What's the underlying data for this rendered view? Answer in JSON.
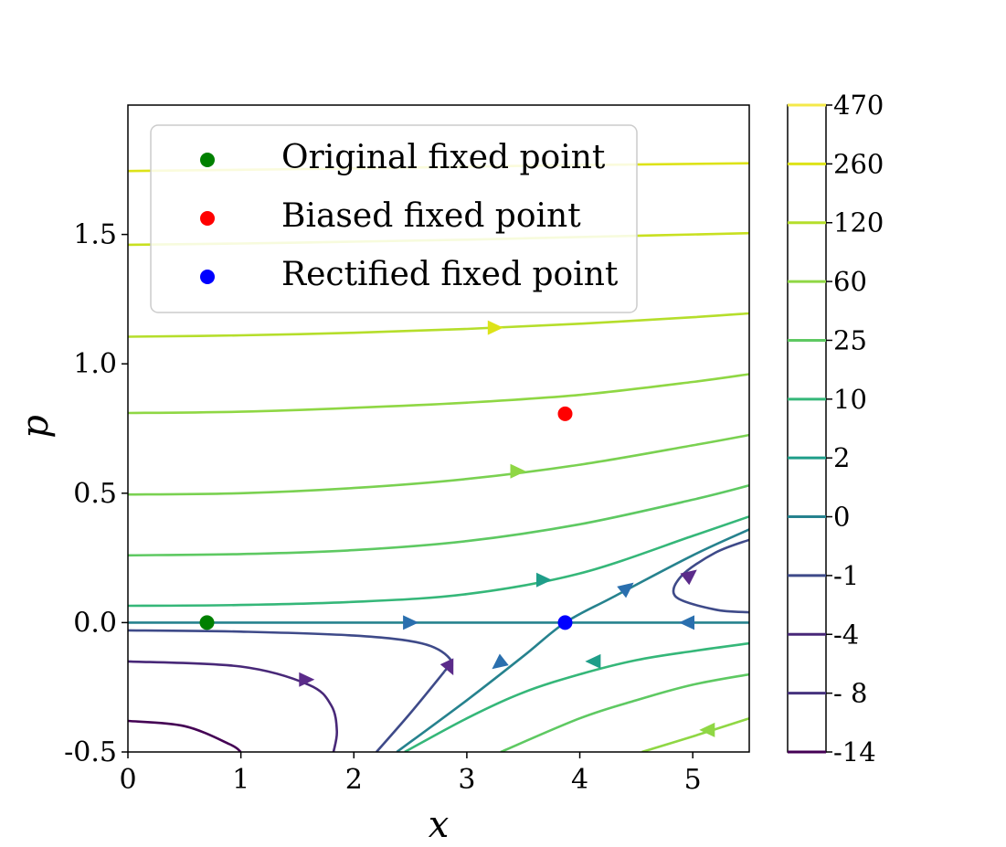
{
  "chart_data": {
    "type": "line",
    "subtype": "contour / phase portrait",
    "title": "",
    "xlabel": "x",
    "ylabel": "p",
    "xlim": [
      0,
      5.5
    ],
    "ylim": [
      -0.5,
      2.0
    ],
    "xticks": [
      "0",
      "1",
      "2",
      "3",
      "4",
      "5"
    ],
    "yticks": [
      {
        "value": -0.5,
        "label": "-0.5"
      },
      {
        "value": 0.0,
        "label": "0.0"
      },
      {
        "value": 0.5,
        "label": "0.5"
      },
      {
        "value": 1.0,
        "label": "1.0"
      },
      {
        "value": 1.5,
        "label": "1.5"
      }
    ],
    "grid": false,
    "legend_position": "top-left",
    "legend": [
      {
        "label": "Original fixed point",
        "color": "#008000"
      },
      {
        "label": "Biased fixed point",
        "color": "#ff0000"
      },
      {
        "label": "Rectified fixed point",
        "color": "#0000ff"
      }
    ],
    "fixed_points": [
      {
        "name": "Original fixed point",
        "x": 0.7,
        "p": 0.0,
        "color": "#008000"
      },
      {
        "name": "Biased fixed point",
        "x": 3.87,
        "p": 0.807,
        "color": "#ff0000"
      },
      {
        "name": "Rectified fixed point",
        "x": 3.87,
        "p": 0.0,
        "color": "#0000ff"
      }
    ],
    "colorbar": {
      "labels": [
        "470",
        "260",
        "120",
        "60",
        "25",
        "10",
        "2",
        "0",
        "-1",
        "-4",
        "- 8",
        "-14"
      ],
      "colors": [
        "#f4e94a",
        "#dde318",
        "#b5de2b",
        "#8fd744",
        "#5ec962",
        "#35b779",
        "#1f9e89",
        "#26828e",
        "#3e4a89",
        "#482878",
        "#46327e",
        "#440154"
      ]
    },
    "series": [
      {
        "level": "260",
        "color": "#dde318",
        "x": [
          0,
          1,
          2,
          3,
          4,
          5.5
        ],
        "y": [
          1.745,
          1.75,
          1.755,
          1.762,
          1.768,
          1.775
        ]
      },
      {
        "level": "120",
        "color": "#c8e020",
        "x": [
          0,
          1,
          2,
          3,
          4,
          5.5
        ],
        "y": [
          1.46,
          1.465,
          1.472,
          1.48,
          1.49,
          1.505
        ]
      },
      {
        "level": "60",
        "color": "#b5de2b",
        "x": [
          0,
          1,
          2,
          3,
          4,
          5,
          5.5
        ],
        "y": [
          1.105,
          1.11,
          1.12,
          1.135,
          1.155,
          1.18,
          1.195
        ]
      },
      {
        "level": "25",
        "color": "#8fd744",
        "x": [
          0,
          1,
          2,
          3,
          4,
          5,
          5.5
        ],
        "y": [
          0.81,
          0.815,
          0.83,
          0.85,
          0.88,
          0.93,
          0.96
        ]
      },
      {
        "level": "25",
        "color": "#7ad151",
        "x": [
          0,
          1,
          2,
          3,
          4,
          5,
          5.5
        ],
        "y": [
          0.495,
          0.5,
          0.52,
          0.555,
          0.61,
          0.685,
          0.725
        ]
      },
      {
        "level": "10",
        "color": "#5ec962",
        "x": [
          0,
          1,
          2,
          3,
          4,
          5,
          5.5
        ],
        "y": [
          0.26,
          0.265,
          0.28,
          0.315,
          0.38,
          0.475,
          0.53
        ]
      },
      {
        "level": "2",
        "color": "#35b779",
        "x": [
          0,
          1,
          2,
          3,
          4,
          5,
          5.5
        ],
        "y": [
          0.065,
          0.068,
          0.08,
          0.11,
          0.19,
          0.335,
          0.41
        ]
      },
      {
        "level": "0",
        "color": "#26828e",
        "x": [
          0,
          5.5
        ],
        "y": [
          0.0,
          0.0
        ]
      },
      {
        "level": "0",
        "color": "#26828e",
        "x": [
          2.38,
          3.0,
          3.5,
          3.87,
          4.3,
          5.0,
          5.5
        ],
        "y": [
          -0.5,
          -0.3,
          -0.13,
          0.0,
          0.1,
          0.26,
          0.36
        ]
      },
      {
        "level": "-1",
        "color": "#3e4a89",
        "x": [
          0,
          1,
          2,
          2.6,
          2.85,
          2.8
        ],
        "y": [
          -0.03,
          -0.035,
          -0.05,
          -0.08,
          -0.14,
          -0.19
        ]
      },
      {
        "level": "-1",
        "color": "#3e4a89",
        "x": [
          2.8,
          2.5,
          2.2
        ],
        "y": [
          -0.19,
          -0.35,
          -0.5
        ]
      },
      {
        "level": "-1",
        "color": "#3e4a89",
        "x": [
          5.5,
          5.2,
          4.85,
          4.9,
          5.2,
          5.5
        ],
        "y": [
          0.04,
          0.05,
          0.1,
          0.18,
          0.27,
          0.32
        ]
      },
      {
        "level": "-4",
        "color": "#482878",
        "x": [
          0,
          1,
          1.6,
          1.8,
          1.85,
          1.82
        ],
        "y": [
          -0.15,
          -0.17,
          -0.24,
          -0.32,
          -0.42,
          -0.5
        ]
      },
      {
        "level": "-8",
        "color": "#440154",
        "x": [
          0,
          0.5,
          0.9,
          1.0
        ],
        "y": [
          -0.38,
          -0.4,
          -0.47,
          -0.5
        ]
      },
      {
        "level": "2",
        "color": "#35b779",
        "x": [
          2.45,
          3.0,
          3.5,
          4.0,
          4.5,
          5.0,
          5.5
        ],
        "y": [
          -0.5,
          -0.37,
          -0.27,
          -0.2,
          -0.145,
          -0.11,
          -0.08
        ]
      },
      {
        "level": "10",
        "color": "#5ec962",
        "x": [
          3.3,
          4.0,
          4.5,
          5.0,
          5.5
        ],
        "y": [
          -0.5,
          -0.37,
          -0.3,
          -0.24,
          -0.2
        ]
      },
      {
        "level": "25",
        "color": "#8fd744",
        "x": [
          4.55,
          5.0,
          5.5
        ],
        "y": [
          -0.5,
          -0.44,
          -0.37
        ]
      }
    ],
    "arrows": [
      {
        "x": 3.25,
        "p": 1.14,
        "dir": "right",
        "color": "#dde318"
      },
      {
        "x": 3.45,
        "p": 0.585,
        "dir": "right",
        "color": "#8fd744"
      },
      {
        "x": 3.68,
        "p": 0.165,
        "dir": "right",
        "color": "#1f9e89"
      },
      {
        "x": 2.5,
        "p": 0.0,
        "dir": "right",
        "color": "#2a6fae"
      },
      {
        "x": 4.95,
        "p": 0.0,
        "dir": "left",
        "color": "#2a6fae"
      },
      {
        "x": 4.42,
        "p": 0.135,
        "dir": "up-right",
        "color": "#2a6fae"
      },
      {
        "x": 3.28,
        "p": -0.16,
        "dir": "down-left",
        "color": "#2a6fae"
      },
      {
        "x": 4.12,
        "p": -0.15,
        "dir": "left",
        "color": "#1f9e89"
      },
      {
        "x": 4.98,
        "p": 0.185,
        "dir": "up-right",
        "color": "#5b2b8a"
      },
      {
        "x": 2.85,
        "p": -0.175,
        "dir": "down",
        "color": "#5b2b8a"
      },
      {
        "x": 1.58,
        "p": -0.22,
        "dir": "right",
        "color": "#5b2b8a"
      },
      {
        "x": 5.13,
        "p": -0.415,
        "dir": "left",
        "color": "#8fd744"
      }
    ]
  }
}
